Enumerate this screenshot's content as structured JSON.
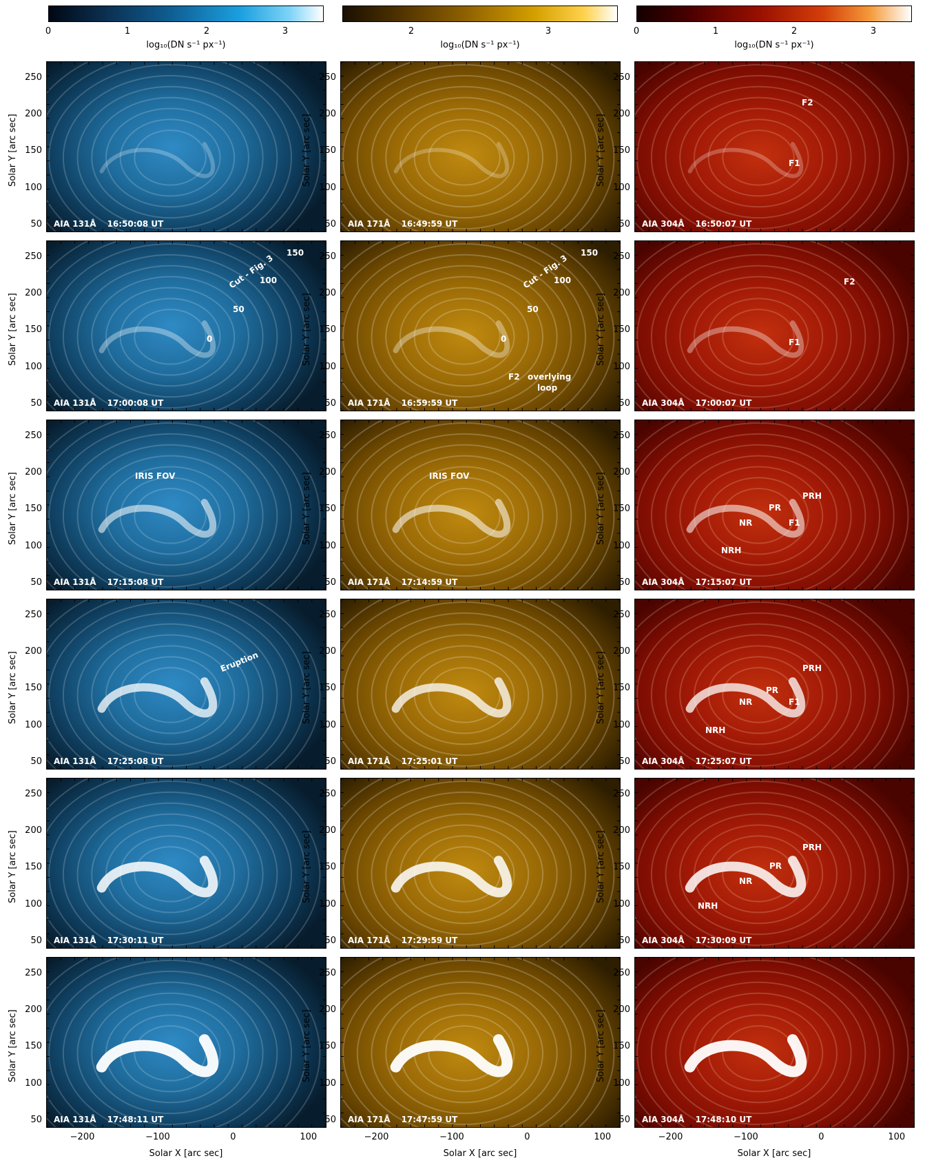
{
  "colorbars": [
    {
      "ticks": [
        "0",
        "1",
        "2",
        "3"
      ],
      "label": "log₁₀(DN s⁻¹ px⁻¹)"
    },
    {
      "ticks": [
        "2",
        "3"
      ],
      "label": "log₁₀(DN s⁻¹ px⁻¹)"
    },
    {
      "ticks": [
        "0",
        "1",
        "2",
        "3"
      ],
      "label": "log₁₀(DN s⁻¹ px⁻¹)"
    }
  ],
  "axes": {
    "y_title": "Solar Y [arc sec]",
    "x_title": "Solar X [arc sec]",
    "y_ticks": [
      "250",
      "200",
      "150",
      "100",
      "50"
    ],
    "x_ticks": [
      "−200",
      "−100",
      "0",
      "100"
    ]
  },
  "rows": [
    {
      "panels": [
        {
          "instrument": "AIA 131Å",
          "time": "16:50:08 UT"
        },
        {
          "instrument": "AIA 171Å",
          "time": "16:49:59 UT"
        },
        {
          "instrument": "AIA 304Å",
          "time": "16:50:07 UT"
        }
      ]
    },
    {
      "panels": [
        {
          "instrument": "AIA 131Å",
          "time": "17:00:08 UT"
        },
        {
          "instrument": "AIA 171Å",
          "time": "16:59:59 UT"
        },
        {
          "instrument": "AIA 304Å",
          "time": "17:00:07 UT"
        }
      ]
    },
    {
      "panels": [
        {
          "instrument": "AIA 131Å",
          "time": "17:15:08 UT"
        },
        {
          "instrument": "AIA 171Å",
          "time": "17:14:59 UT"
        },
        {
          "instrument": "AIA 304Å",
          "time": "17:15:07 UT"
        }
      ]
    },
    {
      "panels": [
        {
          "instrument": "AIA 131Å",
          "time": "17:25:08 UT"
        },
        {
          "instrument": "AIA 171Å",
          "time": "17:25:01 UT"
        },
        {
          "instrument": "AIA 304Å",
          "time": "17:25:07 UT"
        }
      ]
    },
    {
      "panels": [
        {
          "instrument": "AIA 131Å",
          "time": "17:30:11 UT"
        },
        {
          "instrument": "AIA 171Å",
          "time": "17:29:59 UT"
        },
        {
          "instrument": "AIA 304Å",
          "time": "17:30:09 UT"
        }
      ]
    },
    {
      "panels": [
        {
          "instrument": "AIA 131Å",
          "time": "17:48:11 UT"
        },
        {
          "instrument": "AIA 171Å",
          "time": "17:47:59 UT"
        },
        {
          "instrument": "AIA 304Å",
          "time": "17:48:10 UT"
        }
      ]
    }
  ],
  "annotations": {
    "f1": "F1",
    "f2": "F2",
    "cut": "Cut - Fig. 3",
    "cut_ticks": [
      "0",
      "50",
      "100",
      "150"
    ],
    "overlying_loop_1": "overlying",
    "overlying_loop_2": "loop",
    "iris_fov": "IRIS FOV",
    "eruption": "Eruption",
    "pr": "PR",
    "prh": "PRH",
    "nr": "NR",
    "nrh": "NRH"
  }
}
